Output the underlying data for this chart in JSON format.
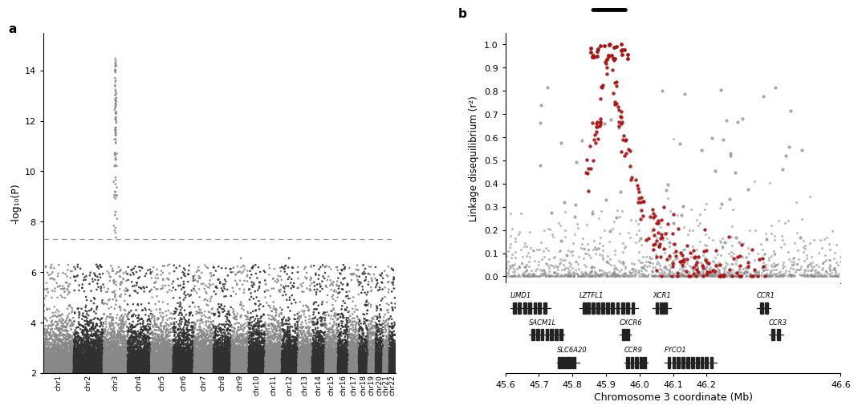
{
  "panel_a_label": "a",
  "panel_b_label": "b",
  "manhattan": {
    "ylabel": "-log₁₀(P)",
    "ylim": [
      2,
      15.5
    ],
    "yticks": [
      2,
      4,
      6,
      8,
      10,
      12,
      14
    ],
    "threshold": 7.3,
    "chromosomes": [
      "chr1",
      "chr2",
      "chr3",
      "chr4",
      "chr5",
      "chr6",
      "chr7",
      "chr8",
      "chr9",
      "chr10",
      "chr11",
      "chr12",
      "chr13",
      "chr14",
      "chr15",
      "chr16",
      "chr17",
      "chr18",
      "chr19",
      "chr20",
      "chr21",
      "chr22"
    ],
    "chr_colors": [
      "#888888",
      "#303030"
    ],
    "seed": 42,
    "n_points_per_mb": 120,
    "base_max": 6.2,
    "threshold_y": 7.3
  },
  "regional": {
    "xlabel": "Chromosome 3 coordinate (Mb)",
    "ylabel": "Linkage disequilibrium (r²)",
    "xlim": [
      45.6,
      46.6
    ],
    "ylim": [
      -0.03,
      1.05
    ],
    "xticks": [
      45.6,
      45.7,
      45.8,
      45.9,
      46.0,
      46.1,
      46.2,
      46.6
    ],
    "xticklabels": [
      "45.6",
      "45.7",
      "45.8",
      "45.9",
      "46.0",
      "46.1",
      "46.2",
      "46.6"
    ],
    "yticks": [
      0.0,
      0.1,
      0.2,
      0.3,
      0.4,
      0.5,
      0.6,
      0.7,
      0.8,
      0.9,
      1.0
    ],
    "bar_start": 45.855,
    "bar_end": 45.965,
    "red_color": "#AA1111",
    "gray_color": "#888888",
    "peak_x": 45.91,
    "red_region_start": 45.84,
    "red_region_end": 46.38
  },
  "gene_rows": [
    {
      "row": 0,
      "genes": [
        {
          "name": "LIMD1",
          "start": 45.615,
          "end": 45.735,
          "exons": [
            45.628,
            45.642,
            45.658,
            45.672,
            45.688,
            45.702,
            45.718
          ]
        },
        {
          "name": "LZTFL1",
          "start": 45.82,
          "end": 45.995,
          "exons": [
            45.835,
            45.848,
            45.862,
            45.876,
            45.89,
            45.905,
            45.92,
            45.935,
            45.95,
            45.965,
            45.98
          ]
        },
        {
          "name": "XCR1",
          "start": 46.04,
          "end": 46.095,
          "exons": [
            46.052,
            46.065,
            46.078
          ]
        },
        {
          "name": "CCR1",
          "start": 46.35,
          "end": 46.39,
          "exons": [
            46.365,
            46.378
          ]
        }
      ]
    },
    {
      "row": 1,
      "genes": [
        {
          "name": "SACM1L",
          "start": 45.67,
          "end": 45.775,
          "exons": [
            45.682,
            45.696,
            45.71,
            45.724,
            45.738,
            45.752,
            45.766
          ]
        },
        {
          "name": "CXCR6",
          "start": 45.94,
          "end": 45.975,
          "exons": [
            45.952,
            45.965
          ]
        },
        {
          "name": "CCR3",
          "start": 46.385,
          "end": 46.43,
          "exons": [
            46.398,
            46.415
          ]
        }
      ]
    },
    {
      "row": 2,
      "genes": [
        {
          "name": "SLC6A20",
          "start": 45.755,
          "end": 45.82,
          "exons": [
            45.762,
            45.772,
            45.782,
            45.793,
            45.804
          ]
        },
        {
          "name": "CCR9",
          "start": 45.955,
          "end": 46.025,
          "exons": [
            45.965,
            45.978,
            45.991,
            46.004,
            46.015
          ]
        },
        {
          "name": "FYCO1",
          "start": 46.075,
          "end": 46.23,
          "exons": [
            46.088,
            46.102,
            46.116,
            46.13,
            46.145,
            46.158,
            46.172,
            46.186,
            46.2,
            46.215
          ]
        }
      ]
    }
  ]
}
